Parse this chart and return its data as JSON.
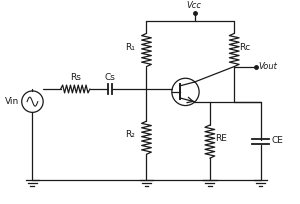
{
  "background": "#ffffff",
  "line_color": "#1a1a1a",
  "labels": {
    "Vin": "Vin",
    "Rs": "Rs",
    "Cs": "Cs",
    "R1": "R₁",
    "R2": "R₂",
    "Rc": "Rc",
    "Re": "RE",
    "Ce": "CE",
    "Vcc": "Vcc",
    "Vout": "Vout"
  },
  "figsize": [
    3.0,
    2.04
  ],
  "dpi": 100
}
